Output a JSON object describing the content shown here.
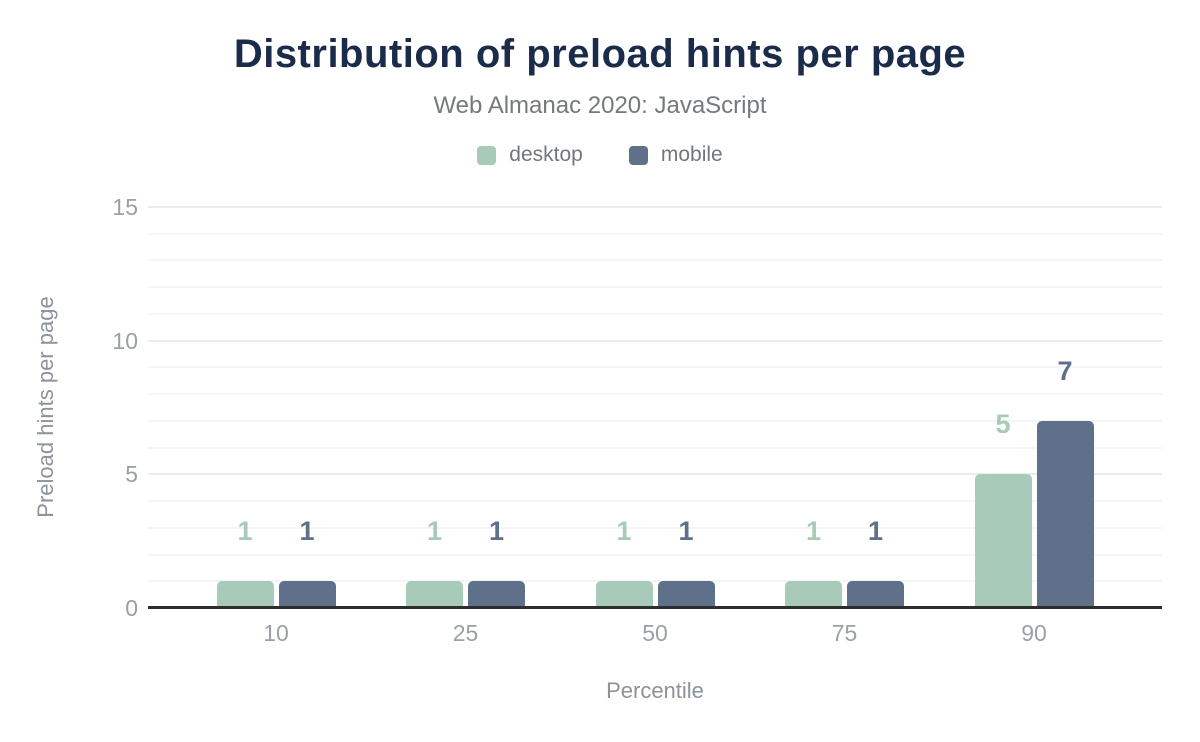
{
  "chart_data": {
    "type": "bar",
    "title": "Distribution of preload hints per page",
    "subtitle": "Web Almanac 2020: JavaScript",
    "xlabel": "Percentile",
    "ylabel": "Preload hints per page",
    "categories": [
      "10",
      "25",
      "50",
      "75",
      "90"
    ],
    "series": [
      {
        "name": "desktop",
        "color": "#a8cbb9",
        "values": [
          1,
          1,
          1,
          1,
          5
        ]
      },
      {
        "name": "mobile",
        "color": "#5f718a",
        "values": [
          1,
          1,
          1,
          1,
          7
        ]
      }
    ],
    "ylim": [
      0,
      15
    ],
    "yticks": [
      0,
      5,
      10,
      15
    ],
    "grid_step": 1,
    "legend_position": "top",
    "data_labels": true,
    "colors": {
      "title": "#1b2b4a",
      "subtitle": "#75797e",
      "tick_label": "#9aa0a6",
      "axis_title": "#8d9399",
      "axis_line": "#2d2d2d",
      "gridline_minor": "#f4f5f6",
      "gridline_major": "#e9ebed"
    }
  }
}
